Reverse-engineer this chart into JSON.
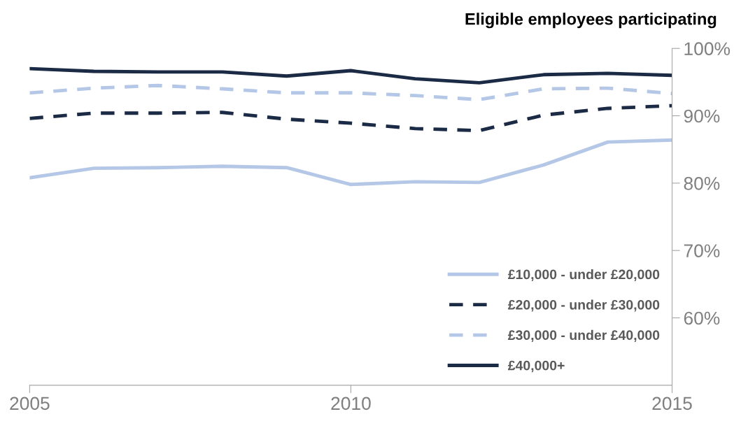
{
  "chart_data": {
    "type": "line",
    "ylabel": "Eligible employees participating",
    "x": [
      2005,
      2006,
      2007,
      2008,
      2009,
      2010,
      2011,
      2012,
      2013,
      2014,
      2015
    ],
    "series": [
      {
        "name": "£10,000 - under £20,000",
        "color": "#b4c7e7",
        "line_style": "solid",
        "values": [
          80.8,
          82.2,
          82.3,
          82.5,
          82.3,
          79.8,
          80.2,
          80.1,
          82.7,
          86.1,
          86.4
        ]
      },
      {
        "name": "£20,000 - under £30,000",
        "color": "#1b2a45",
        "line_style": "dashed",
        "values": [
          89.6,
          90.4,
          90.4,
          90.5,
          89.5,
          88.9,
          88.1,
          87.8,
          90.1,
          91.1,
          91.5
        ]
      },
      {
        "name": "£30,000 - under £40,000",
        "color": "#b4c7e7",
        "line_style": "dashed",
        "values": [
          93.4,
          94.1,
          94.5,
          94.0,
          93.4,
          93.4,
          93.0,
          92.4,
          94.0,
          94.1,
          93.3
        ]
      },
      {
        "name": "£40,000+",
        "color": "#1b2a45",
        "line_style": "solid",
        "values": [
          97.0,
          96.6,
          96.5,
          96.5,
          95.9,
          96.7,
          95.5,
          94.9,
          96.1,
          96.3,
          96.0
        ]
      }
    ],
    "xlim": [
      2005,
      2015
    ],
    "xticks": [
      2005,
      2010,
      2015
    ],
    "ylim": [
      50,
      100
    ],
    "yticks": [
      {
        "value": 60,
        "label": "60%"
      },
      {
        "value": 70,
        "label": "70%"
      },
      {
        "value": 80,
        "label": "80%"
      },
      {
        "value": 90,
        "label": "90%"
      },
      {
        "value": 100,
        "label": "100%"
      }
    ],
    "grid": false,
    "legend": "bottom right",
    "marker": "none"
  }
}
